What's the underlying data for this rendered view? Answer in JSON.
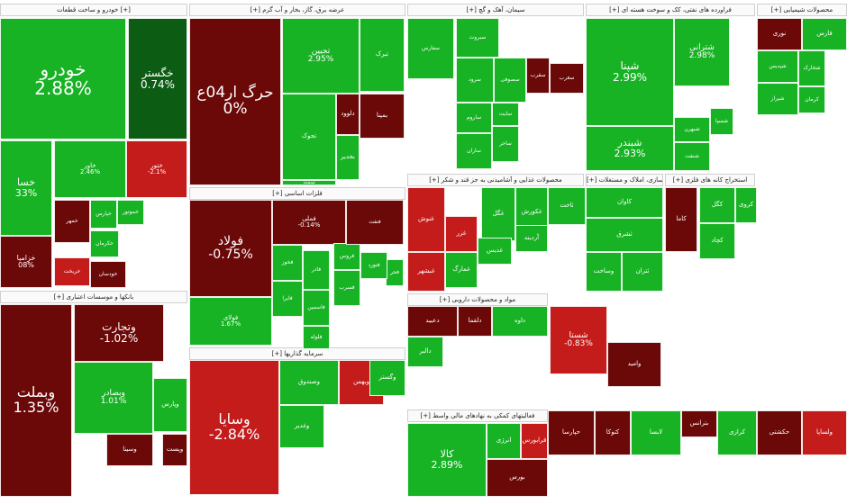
{
  "colors": {
    "strong_green": "#17b324",
    "light_green": "#3fbf3f",
    "dark_green": "#0d5c14",
    "mid_green": "#229922",
    "dark_red": "#6b0808",
    "red": "#c41b1b",
    "maroon": "#7a1010"
  },
  "sectors": [
    {
      "id": "s1",
      "name": "خودرو و ساخت قطعات [+]"
    },
    {
      "id": "s2",
      "name": "[+] عرضه برق، گاز، بخار و آب گرم"
    },
    {
      "id": "s3",
      "name": "[+] سیمان، آهک و گچ"
    },
    {
      "id": "s4",
      "name": "[+] فراورده های نفتی، کک و سوخت هسته ای"
    },
    {
      "id": "s5",
      "name": "[+] محصولات شیمیایی"
    },
    {
      "id": "s6",
      "name": "[+] فلزات اساسی"
    },
    {
      "id": "s7",
      "name": "[+] محصولات غذایی و آشامیدنی به جز قند و شکر"
    },
    {
      "id": "s8",
      "name": "[+] انبوه سازی، املاک و مستغلات"
    },
    {
      "id": "s9",
      "name": "[+] استخراج کانه های فلزی"
    },
    {
      "id": "s10",
      "name": "[+] بانکها و موسسات اعتباری"
    },
    {
      "id": "s11",
      "name": "[+] مواد و محصولات دارویی"
    },
    {
      "id": "s12",
      "name": "[+] سرمایه گذاریها"
    },
    {
      "id": "s13",
      "name": "[+] فعالیتهای کمکی به نهادهای مالی واسط"
    }
  ],
  "tiles": [
    {
      "id": "t1",
      "name": "خودرو",
      "pct": "2.88%"
    },
    {
      "id": "t2",
      "name": "خگستر",
      "pct": "0.74%"
    },
    {
      "id": "t3",
      "name": "خسا",
      "pct": "33%"
    },
    {
      "id": "t4",
      "name": "خاور",
      "pct": "2.46%"
    },
    {
      "id": "t5",
      "name": "ختور",
      "pct": "-2.1%"
    },
    {
      "id": "t6",
      "name": "خزامیا",
      "pct": "08%"
    },
    {
      "id": "t7",
      "name": "خمهر",
      "pct": ""
    },
    {
      "id": "t8",
      "name": "خموتور",
      "pct": ""
    },
    {
      "id": "t9",
      "name": "خکرمان",
      "pct": ""
    },
    {
      "id": "t10",
      "name": "خریخت",
      "pct": ""
    },
    {
      "id": "t11",
      "name": "خپارس",
      "pct": ""
    },
    {
      "id": "t12",
      "name": "خودسان",
      "pct": ""
    },
    {
      "id": "t13",
      "name": "حرگ ار04ع",
      "pct": "0%"
    },
    {
      "id": "t14",
      "name": "تجیین",
      "pct": "2.95%"
    },
    {
      "id": "t15",
      "name": "تبرک",
      "pct": ""
    },
    {
      "id": "t16",
      "name": "بمپنا",
      "pct": ""
    },
    {
      "id": "t17",
      "name": "تجوک",
      "pct": ""
    },
    {
      "id": "t18",
      "name": "دلوود",
      "pct": ""
    },
    {
      "id": "t19",
      "name": "بجدیر",
      "pct": ""
    },
    {
      "id": "t20",
      "name": "سمند",
      "pct": ""
    },
    {
      "id": "t21",
      "name": "سفارس",
      "pct": ""
    },
    {
      "id": "t22",
      "name": "سبروت",
      "pct": ""
    },
    {
      "id": "t23",
      "name": "سرود",
      "pct": ""
    },
    {
      "id": "t24",
      "name": "سصوفی",
      "pct": ""
    },
    {
      "id": "t25",
      "name": "سقرب",
      "pct": ""
    },
    {
      "id": "t26",
      "name": "ساروم",
      "pct": ""
    },
    {
      "id": "t27",
      "name": "سایت",
      "pct": ""
    },
    {
      "id": "t28",
      "name": "ساحر",
      "pct": ""
    },
    {
      "id": "t29",
      "name": "ساران",
      "pct": ""
    },
    {
      "id": "t30",
      "name": "سغرب",
      "pct": ""
    },
    {
      "id": "t31",
      "name": "شپنا",
      "pct": "2.99%"
    },
    {
      "id": "t32",
      "name": "شترانی",
      "pct": "2.98%"
    },
    {
      "id": "t33",
      "name": "شبندر",
      "pct": "2.93%"
    },
    {
      "id": "t34",
      "name": "شبهرن",
      "pct": ""
    },
    {
      "id": "t35",
      "name": "شنفت",
      "pct": ""
    },
    {
      "id": "t36",
      "name": "شسپا",
      "pct": ""
    },
    {
      "id": "t37",
      "name": "نوری",
      "pct": ""
    },
    {
      "id": "t38",
      "name": "فارس",
      "pct": ""
    },
    {
      "id": "t39",
      "name": "شخارک",
      "pct": ""
    },
    {
      "id": "t40",
      "name": "شپدیس",
      "pct": ""
    },
    {
      "id": "t41",
      "name": "شیراز",
      "pct": ""
    },
    {
      "id": "t42",
      "name": "کرمان",
      "pct": ""
    },
    {
      "id": "t43",
      "name": "فولاد",
      "pct": "-0.75%"
    },
    {
      "id": "t44",
      "name": "فملی",
      "pct": "-0.14%"
    },
    {
      "id": "t45",
      "name": "فخوز",
      "pct": ""
    },
    {
      "id": "t46",
      "name": "فاسمین",
      "pct": ""
    },
    {
      "id": "t47",
      "name": "فجر",
      "pct": ""
    },
    {
      "id": "t48",
      "name": "فاذر",
      "pct": ""
    },
    {
      "id": "t49",
      "name": "فسرب",
      "pct": ""
    },
    {
      "id": "t50",
      "name": "فلوله",
      "pct": ""
    },
    {
      "id": "t51",
      "name": "فنورد",
      "pct": ""
    },
    {
      "id": "t52",
      "name": "فایرا",
      "pct": ""
    },
    {
      "id": "t53",
      "name": "فروس",
      "pct": ""
    },
    {
      "id": "t54",
      "name": "فنفت",
      "pct": ""
    },
    {
      "id": "t55",
      "name": "فولای",
      "pct": "1.67%"
    },
    {
      "id": "t56",
      "name": "غگل",
      "pct": ""
    },
    {
      "id": "t57",
      "name": "غکورش",
      "pct": ""
    },
    {
      "id": "t58",
      "name": "غزر",
      "pct": ""
    },
    {
      "id": "t59",
      "name": "غمارگ",
      "pct": ""
    },
    {
      "id": "t60",
      "name": "غبشهر",
      "pct": ""
    },
    {
      "id": "t61",
      "name": "غدیس",
      "pct": ""
    },
    {
      "id": "t62",
      "name": "غنوش",
      "pct": ""
    },
    {
      "id": "t63",
      "name": "ثاخت",
      "pct": ""
    },
    {
      "id": "t64",
      "name": "آردینه",
      "pct": ""
    },
    {
      "id": "t65",
      "name": "کاوان",
      "pct": ""
    },
    {
      "id": "t66",
      "name": "ثشرق",
      "pct": ""
    },
    {
      "id": "t67",
      "name": "وساخت",
      "pct": ""
    },
    {
      "id": "t68",
      "name": "ثتران",
      "pct": ""
    },
    {
      "id": "t69",
      "name": "کاما",
      "pct": ""
    },
    {
      "id": "t70",
      "name": "کگل",
      "pct": ""
    },
    {
      "id": "t71",
      "name": "کچاد",
      "pct": ""
    },
    {
      "id": "t72",
      "name": "کروی",
      "pct": ""
    },
    {
      "id": "t73",
      "name": "وبملت",
      "pct": "1.35%"
    },
    {
      "id": "t74",
      "name": "وتجارت",
      "pct": "-1.02%"
    },
    {
      "id": "t75",
      "name": "وبصادر",
      "pct": "1.01%"
    },
    {
      "id": "t76",
      "name": "وپارس",
      "pct": ""
    },
    {
      "id": "t77",
      "name": "وسینا",
      "pct": ""
    },
    {
      "id": "t78",
      "name": "وپست",
      "pct": ""
    },
    {
      "id": "t79",
      "name": "دعبید",
      "pct": ""
    },
    {
      "id": "t80",
      "name": "دلقما",
      "pct": ""
    },
    {
      "id": "t81",
      "name": "داوه",
      "pct": ""
    },
    {
      "id": "t82",
      "name": "دالبر",
      "pct": ""
    },
    {
      "id": "t83",
      "name": "شستا",
      "pct": "-0.83%"
    },
    {
      "id": "t84",
      "name": "وامید",
      "pct": ""
    },
    {
      "id": "t85",
      "name": "وسایا",
      "pct": "-2.84%"
    },
    {
      "id": "t86",
      "name": "وصندوق",
      "pct": ""
    },
    {
      "id": "t87",
      "name": "وبهمن",
      "pct": ""
    },
    {
      "id": "t88",
      "name": "وغدیر",
      "pct": ""
    },
    {
      "id": "t89",
      "name": "وگستر",
      "pct": ""
    },
    {
      "id": "t90",
      "name": "کالا",
      "pct": "2.89%"
    },
    {
      "id": "t91",
      "name": "انرژی",
      "pct": ""
    },
    {
      "id": "t92",
      "name": "فرابورس",
      "pct": ""
    },
    {
      "id": "t93",
      "name": "بورس",
      "pct": ""
    },
    {
      "id": "t94",
      "name": "حپارسا",
      "pct": ""
    },
    {
      "id": "t95",
      "name": "کتوکا",
      "pct": ""
    },
    {
      "id": "t96",
      "name": "لابسا",
      "pct": ""
    },
    {
      "id": "t97",
      "name": "بترانس",
      "pct": ""
    },
    {
      "id": "t98",
      "name": "کرازی",
      "pct": ""
    },
    {
      "id": "t99",
      "name": "حکشتی",
      "pct": ""
    },
    {
      "id": "t100",
      "name": "ولساپا",
      "pct": ""
    }
  ]
}
